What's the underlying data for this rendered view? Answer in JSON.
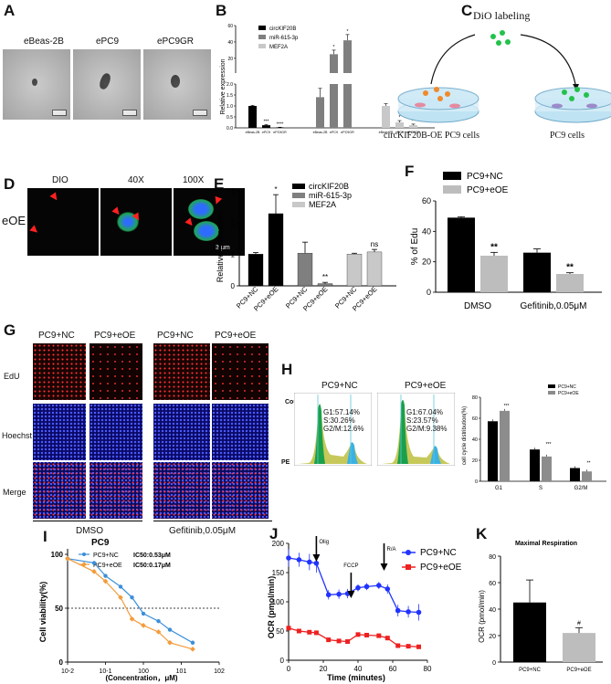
{
  "panel_labels": {
    "A": "A",
    "B": "B",
    "C": "C",
    "D": "D",
    "E": "E",
    "F": "F",
    "G": "G",
    "H": "H",
    "I": "I",
    "J": "J",
    "K": "K"
  },
  "panelA": {
    "images": [
      "eBeas-2B",
      "ePC9",
      "ePC9GR"
    ]
  },
  "panelB": {
    "ylabel": "Relative expression",
    "legend": [
      "circKIF20B",
      "miR-615-3p",
      "MEF2A"
    ],
    "colors": [
      "#000000",
      "#7f7f7f",
      "#c8c8c8"
    ],
    "groups": [
      {
        "series": "circKIF20B",
        "cats": [
          "eBeas-2B",
          "ePC9",
          "ePC9GR"
        ],
        "values": [
          1.0,
          0.12,
          0.02
        ],
        "errs": [
          0.03,
          0.03,
          0.01
        ],
        "stars": [
          "",
          "***",
          "****"
        ]
      },
      {
        "series": "miR-615-3p",
        "cats": [
          "eBeas-2B",
          "ePC9",
          "ePC9GR"
        ],
        "values": [
          1.4,
          25,
          42
        ],
        "errs": [
          0.4,
          5,
          7
        ],
        "stars": [
          "",
          "*",
          "*"
        ]
      },
      {
        "series": "MEF2A",
        "cats": [
          "eBeas-2B",
          "ePC9",
          "ePC9GR"
        ],
        "values": [
          1.0,
          0.25,
          0.12
        ],
        "errs": [
          0.1,
          0.08,
          0.05
        ],
        "stars": [
          "",
          "*",
          "**"
        ]
      }
    ],
    "lower_ticks": [
      "0.0",
      "0.5",
      "1.0",
      "1.5",
      "2.0"
    ],
    "upper_ticks": [
      "20",
      "40",
      "60"
    ]
  },
  "panelC": {
    "title": "DiO labeling",
    "left_label": "circKIF20B-OE PC9 cells",
    "right_label": "PC9 cells"
  },
  "panelD": {
    "row_label": "eOE",
    "columns": [
      "DIO",
      "40X",
      "100X"
    ],
    "scale_text": "3 μm"
  },
  "panelE": {
    "chart_data": {
      "type": "bar",
      "ylabel": "Relative expression",
      "legend": [
        "circKIF20B",
        "miR-615-3p",
        "MEF2A"
      ],
      "colors": [
        "#000000",
        "#7f7f7f",
        "#c8c8c8"
      ],
      "categories": [
        "PC9+NC",
        "PC9+eOE",
        "PC9+NC",
        "PC9+eOE",
        "PC9+NC",
        "PC9+eOE"
      ],
      "values": [
        1.0,
        2.28,
        1.03,
        0.07,
        1.0,
        1.07
      ],
      "errs": [
        0.05,
        0.6,
        0.35,
        0.04,
        0.03,
        0.08
      ],
      "stars": [
        "",
        "*",
        "",
        "**",
        "",
        "ns"
      ],
      "ylim": [
        0,
        3
      ],
      "yticks": [
        "0",
        "1",
        "2",
        "3"
      ]
    }
  },
  "panelF": {
    "chart_data": {
      "type": "bar",
      "ylabel": "% of Edu",
      "legend": [
        "PC9+NC",
        "PC9+eOE"
      ],
      "colors": [
        "#000000",
        "#bdbdbd"
      ],
      "categories": [
        "DMSO",
        "Gefitinib,0.05μM"
      ],
      "series": [
        {
          "name": "PC9+NC",
          "values": [
            49,
            26
          ],
          "errs": [
            0.6,
            2.5
          ]
        },
        {
          "name": "PC9+eOE",
          "values": [
            24,
            12
          ],
          "errs": [
            2.2,
            0.8
          ]
        }
      ],
      "stars": [
        "**",
        "**"
      ],
      "ylim": [
        0,
        60
      ],
      "yticks": [
        "0",
        "20",
        "40",
        "60"
      ]
    }
  },
  "panelG": {
    "columns": [
      "PC9+NC",
      "PC9+eOE",
      "PC9+NC",
      "PC9+eOE"
    ],
    "rows": [
      "EdU",
      "Hoechst",
      "Merge"
    ],
    "groups": [
      "DMSO",
      "Gefitinib,0.05μM"
    ]
  },
  "panelH": {
    "histograms": [
      {
        "title": "PC9+NC",
        "g1": "G1:57.14%",
        "s": "S:30.26%",
        "g2m": "G2/M:12.6%"
      },
      {
        "title": "PC9+eOE",
        "g1": "G1:67.04%",
        "s": "S:23.57%",
        "g2m": "G2/M:9.38%"
      }
    ],
    "count_label": "Count",
    "pe_label": "PE",
    "chart_data": {
      "type": "bar",
      "ylabel": "cell cycle distribution(%)",
      "legend": [
        "PC9+NC",
        "PC9+eOE"
      ],
      "colors": [
        "#000000",
        "#8c8c8c"
      ],
      "categories": [
        "G1",
        "S",
        "G2/M"
      ],
      "series": [
        {
          "name": "PC9+NC",
          "values": [
            57.14,
            30.26,
            12.6
          ]
        },
        {
          "name": "PC9+eOE",
          "values": [
            67.04,
            23.57,
            9.38
          ]
        }
      ],
      "stars": [
        "***",
        "***",
        "**"
      ],
      "ylim": [
        0,
        80
      ],
      "yticks": [
        "0",
        "20",
        "40",
        "60",
        "80"
      ]
    }
  },
  "panelI": {
    "chart_data": {
      "type": "scatter",
      "title": "PC9",
      "ylabel": "Cell viability(%)",
      "xlabel": "(Concentration，μM)",
      "x_scale": "log",
      "xticks": [
        "10-2",
        "10-1",
        "100",
        "101",
        "102"
      ],
      "yticks": [
        "0",
        "50",
        "100"
      ],
      "ylim": [
        0,
        100
      ],
      "reference_line": 50,
      "series": [
        {
          "name": "PC9+NC",
          "ic50": "IC50:0.53μM",
          "color": "#3b8fd9",
          "x": [
            0.01,
            0.05,
            0.1,
            0.25,
            0.5,
            1,
            2.5,
            5,
            20
          ],
          "y": [
            96,
            92,
            80,
            70,
            60,
            45,
            38,
            30,
            18
          ]
        },
        {
          "name": "PC9+eOE",
          "ic50": "IC50:0.17μM",
          "color": "#f39c3b",
          "x": [
            0.01,
            0.05,
            0.1,
            0.25,
            0.5,
            1,
            2.5,
            5,
            20
          ],
          "y": [
            96,
            84,
            75,
            60,
            40,
            34,
            28,
            18,
            12
          ]
        }
      ]
    }
  },
  "panelJ": {
    "chart_data": {
      "type": "line",
      "ylabel": "OCR (pmol/min)",
      "xlabel": "Time (minutes)",
      "legend": [
        "PC9+NC",
        "PC9+eOE"
      ],
      "colors": [
        "#2133ff",
        "#ee2020"
      ],
      "annotations": [
        {
          "label": "Olig",
          "x": 16
        },
        {
          "label": "FCCP",
          "x": 36
        },
        {
          "label": "R/A",
          "x": 55
        }
      ],
      "x": [
        0,
        6,
        12,
        16,
        23,
        29,
        34,
        40,
        45,
        52,
        57,
        63,
        69,
        75
      ],
      "series": [
        {
          "name": "PC9+NC",
          "values": [
            175,
            172,
            168,
            166,
            112,
            113,
            114,
            124,
            126,
            128,
            122,
            85,
            83,
            82
          ],
          "errs": [
            15,
            12,
            14,
            16,
            8,
            8,
            8,
            6,
            6,
            6,
            8,
            10,
            10,
            14
          ]
        },
        {
          "name": "PC9+eOE",
          "values": [
            55,
            50,
            48,
            47,
            35,
            33,
            32,
            44,
            43,
            42,
            38,
            25,
            24,
            23
          ],
          "errs": [
            3,
            3,
            3,
            3,
            2,
            2,
            2,
            2,
            2,
            2,
            2,
            2,
            2,
            2
          ]
        }
      ],
      "xlim": [
        0,
        80
      ],
      "ylim": [
        0,
        200
      ],
      "xticks": [
        "0",
        "20",
        "40",
        "60",
        "80"
      ],
      "yticks": [
        "0",
        "50",
        "100",
        "150",
        "200"
      ]
    }
  },
  "panelK": {
    "chart_data": {
      "type": "bar",
      "title": "Maximal Respiration",
      "ylabel": "OCR (pmol/min)",
      "categories": [
        "PC9+NC",
        "PC9+eOE"
      ],
      "values": [
        45,
        22
      ],
      "errs": [
        17,
        4
      ],
      "colors": [
        "#000000",
        "#bdbdbd"
      ],
      "stars": [
        "",
        "#"
      ],
      "ylim": [
        0,
        80
      ],
      "yticks": [
        "0",
        "20",
        "40",
        "60",
        "80"
      ]
    }
  }
}
